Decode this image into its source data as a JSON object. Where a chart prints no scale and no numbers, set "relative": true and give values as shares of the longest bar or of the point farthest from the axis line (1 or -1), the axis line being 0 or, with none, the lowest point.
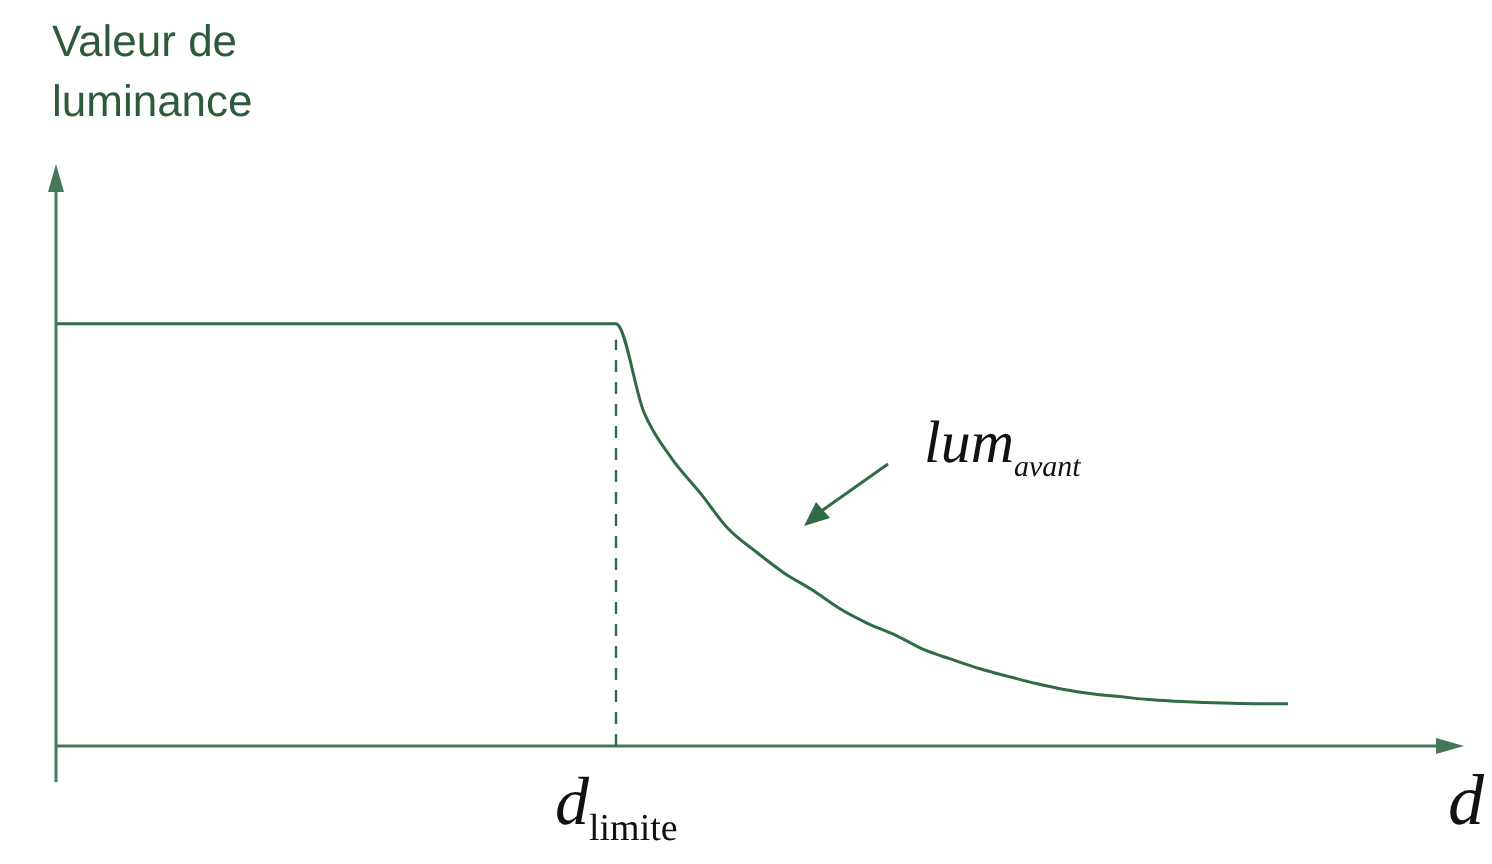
{
  "chart_data": {
    "type": "line",
    "relative": true,
    "ylabel": "Valeur de luminance",
    "xlabel": "d",
    "color": "#2f6b45",
    "marker": "none",
    "line_style": "solid",
    "legend": false,
    "categories": [
      null,
      null,
      null,
      null,
      null,
      null,
      null,
      null,
      null,
      null,
      null,
      null,
      null,
      null,
      null,
      null,
      null,
      null,
      null,
      null,
      null,
      null,
      null,
      null,
      null,
      null,
      null,
      null,
      null,
      null,
      null,
      null,
      null,
      null,
      null,
      null,
      null,
      null,
      null,
      null,
      null,
      null,
      null,
      null,
      null,
      null,
      null,
      null,
      null,
      null,
      null
    ],
    "values": [
      1,
      1,
      1,
      1,
      1,
      1,
      1,
      1,
      1,
      1,
      1,
      1,
      1,
      1,
      1,
      1,
      1,
      1,
      1,
      1,
      1,
      0.79,
      0.68,
      0.6,
      0.515,
      0.46,
      0.41,
      0.37,
      0.325,
      0.29,
      0.262,
      0.228,
      0.205,
      0.183,
      0.165,
      0.148,
      0.134,
      0.124,
      0.117,
      0.11,
      0.106,
      0.103,
      0.101,
      0.1,
      0.1,
      null,
      null,
      null,
      null,
      null,
      null
    ],
    "ref_lines": [
      {
        "axis": "x",
        "label": "d$_{limite}$",
        "line_style": "dashed",
        "color": "#2f6b45"
      }
    ],
    "annotations": [
      "lum$_{avant}$"
    ]
  }
}
